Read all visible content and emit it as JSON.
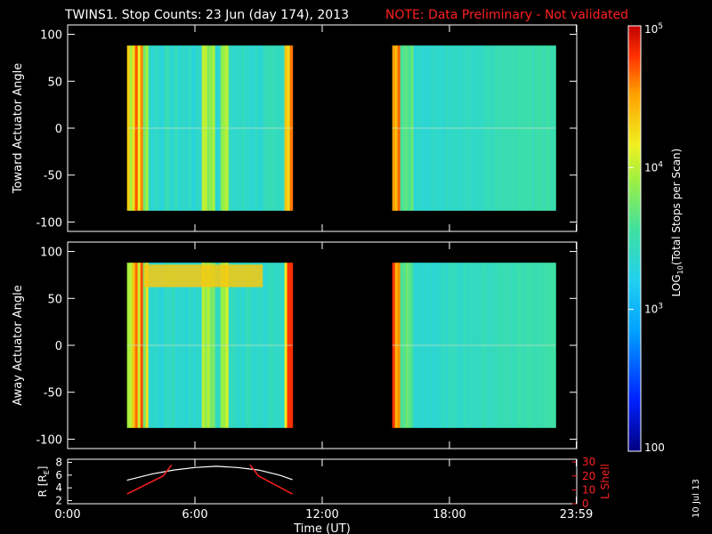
{
  "header": {
    "title": "TWINS1. Stop Counts: 23 Jun (day 174), 2013",
    "note": "NOTE: Data Preliminary - Not validated"
  },
  "colors": {
    "background": "#000000",
    "text": "#ffffff",
    "note": "#ff2020",
    "lshell": "#ff2020",
    "radius": "#ffffff"
  },
  "chart_data": [
    {
      "type": "heatmap",
      "panel": "top",
      "ylabel": "Toward Actuator Angle",
      "ylim": [
        -110,
        110
      ],
      "yticks": [
        100,
        50,
        0,
        -50,
        -100
      ],
      "ytick_labels": [
        "100",
        "50",
        "0",
        "-50",
        "-100"
      ],
      "xlim": [
        0,
        24
      ],
      "data_time_ranges_ut": [
        [
          2.8,
          10.6
        ],
        [
          15.3,
          23.0
        ]
      ],
      "angle_range": [
        -88,
        88
      ],
      "z_scale": "log10",
      "dominant_log10_counts": 3.0
    },
    {
      "type": "heatmap",
      "panel": "bottom",
      "ylabel": "Away Actuator Angle",
      "ylim": [
        -110,
        110
      ],
      "yticks": [
        100,
        50,
        0,
        -50,
        -100
      ],
      "ytick_labels": [
        "100",
        "50",
        "0",
        "-50",
        "-100"
      ],
      "xlim": [
        0,
        24
      ],
      "data_time_ranges_ut": [
        [
          2.8,
          10.6
        ],
        [
          15.3,
          23.0
        ]
      ],
      "angle_range": [
        -88,
        88
      ],
      "z_scale": "log10",
      "dominant_log10_counts": 3.0
    },
    {
      "type": "line",
      "panel": "orbit",
      "xlabel": "Time (UT)",
      "xticks": [
        0,
        6,
        12,
        18,
        23.98
      ],
      "xtick_labels": [
        "0:00",
        "6:00",
        "12:00",
        "18:00",
        "23:59"
      ],
      "ylabel_left": "R [RE]",
      "ylabel_left_main": "R [R",
      "ylabel_left_sub": "E",
      "ylabel_left_close": "]",
      "yticks_left": [
        "2",
        "4",
        "6",
        "8"
      ],
      "ylim_left": [
        1.5,
        8.5
      ],
      "ylabel_right": "L Shell",
      "yticks_right": [
        "0",
        "10",
        "20",
        "30"
      ],
      "ylim_right": [
        0,
        32
      ],
      "series": [
        {
          "name": "R",
          "x": [
            2.8,
            4.0,
            5.0,
            6.0,
            7.0,
            8.0,
            9.0,
            10.0,
            10.6
          ],
          "y": [
            5.2,
            6.2,
            6.8,
            7.2,
            7.4,
            7.2,
            6.8,
            6.0,
            5.3
          ]
        },
        {
          "name": "L Shell",
          "x": [
            2.8,
            4.5,
            4.9,
            8.6,
            9.0,
            10.6
          ],
          "y": [
            7,
            20,
            28,
            28,
            20,
            7
          ]
        }
      ]
    },
    {
      "type": "colorbar",
      "label": "LOG10(Total Stops per Scan)",
      "label_main": "LOG",
      "label_sub": "10",
      "label_rest": "(Total Stops per Scan)",
      "scale": "log10",
      "range": [
        100,
        100000
      ],
      "ticks": [
        {
          "value": 100000,
          "base": "10",
          "exp": "5"
        },
        {
          "value": 10000,
          "base": "10",
          "exp": "4"
        },
        {
          "value": 1000,
          "base": "10",
          "exp": "3"
        },
        {
          "value": 100,
          "base": "100",
          "exp": ""
        }
      ]
    }
  ],
  "footer": {
    "date_stamp": "10 Jul 13"
  }
}
